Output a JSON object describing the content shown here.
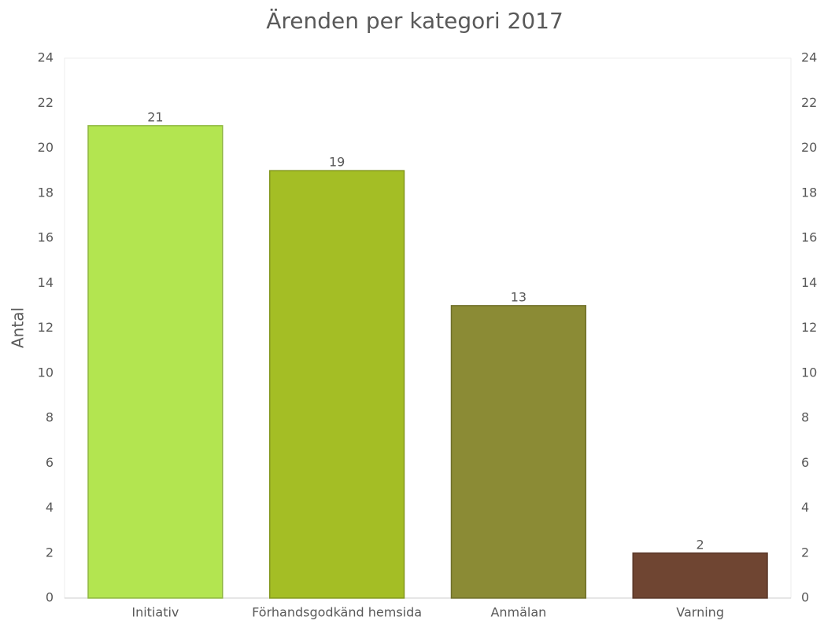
{
  "chart_data": {
    "type": "bar",
    "title": "Ärenden per kategori 2017",
    "y_label": "Antal",
    "categories": [
      "Initiativ",
      "Förhandsgodkänd hemsida",
      "Anmälan",
      "Varning"
    ],
    "values": [
      21,
      19,
      13,
      2
    ],
    "colors": [
      "#b3e550",
      "#a4be25",
      "#8b8b35",
      "#6f4532"
    ],
    "ylim": [
      0,
      24
    ],
    "yticks": [
      0,
      2,
      4,
      6,
      8,
      10,
      12,
      14,
      16,
      18,
      20,
      22,
      24
    ],
    "y2lim": [
      0,
      24
    ],
    "y2ticks": [
      0,
      2,
      4,
      6,
      8,
      10,
      12,
      14,
      16,
      18,
      20,
      22,
      24
    ],
    "grid": false
  }
}
